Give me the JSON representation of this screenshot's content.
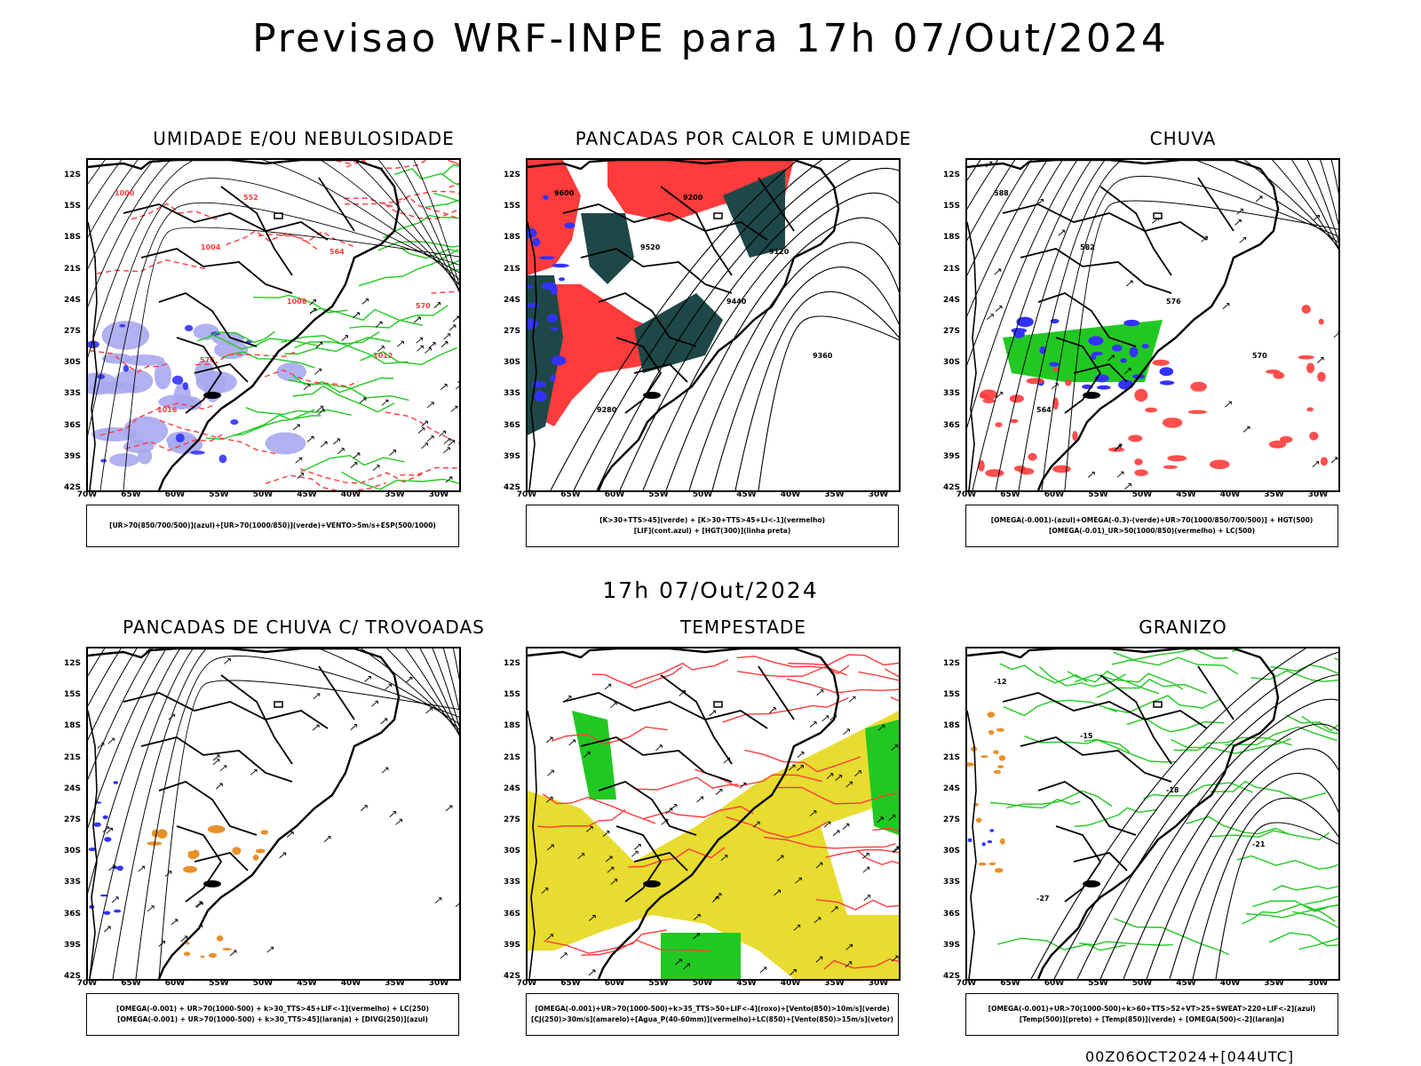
{
  "title": "Previsao WRF-INPE  para 17h 07/Out/2024",
  "mid_title": "17h 07/Out/2024",
  "footer": "00Z06OCT2024+[044UTC]",
  "lat_labels": [
    "12S",
    "15S",
    "18S",
    "21S",
    "24S",
    "27S",
    "30S",
    "33S",
    "36S",
    "39S",
    "42S"
  ],
  "lon_labels": [
    "70W",
    "65W",
    "60W",
    "55W",
    "50W",
    "45W",
    "40W",
    "35W",
    "30W"
  ],
  "colors": {
    "land_border": "#000000",
    "red": "#ff3b3b",
    "green": "#22c822",
    "blue": "#3333ff",
    "lavender": "#a8a8f0",
    "dark_teal": "#1e4848",
    "orange": "#e8902a",
    "yellow": "#e8dc30"
  },
  "panels": [
    {
      "title": "UMIDADE E/OU NEBULOSIDADE",
      "legend": [
        "[UR>70(850/700/500)](azul)+[UR>70(1000/850)](verde)+VENTO>5m/s+ESP(500/1000)"
      ],
      "contour_labels": [
        "1000",
        "1004",
        "1008",
        "1012",
        "1016",
        "552",
        "564",
        "570",
        "576"
      ]
    },
    {
      "title": "PANCADAS POR CALOR E UMIDADE",
      "legend": [
        "[K>30+TTS>45](verde) + [K>30+TTS>45+LI<-1](vermelho)",
        "[LIF](cont.azul) + [HGT(300)](linha preta)"
      ],
      "contour_labels": [
        "9600",
        "9520",
        "9440",
        "9360",
        "9280",
        "9200",
        "9120"
      ]
    },
    {
      "title": "CHUVA",
      "legend": [
        "[OMEGA(-0.001)-(azul)+OMEGA(-0.3)-(verde)+UR>70(1000/850/700/500)] + HGT(500)",
        "[OMEGA(-0.01)_UR>50(1000/850)(vermelho) + LC(500)"
      ],
      "contour_labels": [
        "588",
        "582",
        "576",
        "570",
        "564"
      ]
    },
    {
      "title": "PANCADAS DE CHUVA C/ TROVOADAS",
      "legend": [
        "[OMEGA(-0.001) + UR>70(1000-500) + k>30_TTS>45+LIF<-1](vermelho) + LC(250)",
        "[OMEGA(-0.001) + UR>70(1000-500) + k>30_TTS>45](laranja) + [DIVG(250)](azul)"
      ],
      "contour_labels": []
    },
    {
      "title": "TEMPESTADE",
      "legend": [
        "[OMEGA(-0.001)+UR>70(1000-500)+k>35_TTS>50+LIF<-4](roxo)+[Vento(850)>10m/s](verde)",
        "[CJ(250)>30m/s](amarelo)+[Agua_P(40-60mm)](vermelho)+LC(850)+[Vento(850)>15m/s](vetor)"
      ],
      "contour_labels": []
    },
    {
      "title": "GRANIZO",
      "legend": [
        "[OMEGA(-0.001)+UR>70(1000-500)+k>60+TTS>52+VT>25+SWEAT>220+LIF<-2](azul)",
        "[Temp(500)](preto) + [Temp(850)](verde) + [OMEGA(500)<-2](laranja)"
      ],
      "contour_labels": [
        "-12",
        "-15",
        "-18",
        "-21",
        "-27"
      ]
    }
  ]
}
